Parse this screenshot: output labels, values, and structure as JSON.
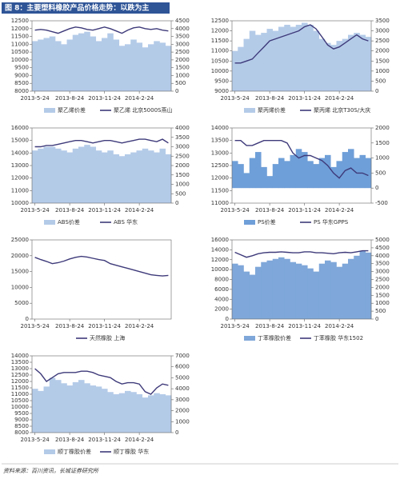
{
  "header": {
    "title": "图 8：主要塑料橡胶产品价格走势：以跌为主"
  },
  "footer": {
    "source": "资料来源：百川资讯，长城证券研究所"
  },
  "chart_data": [
    {
      "type": "combo",
      "categories": [
        "2013-5-24",
        null,
        null,
        null,
        null,
        null,
        "2013-8-24",
        null,
        null,
        null,
        null,
        null,
        "2013-11-24",
        null,
        null,
        null,
        null,
        null,
        "2014-2-24",
        null,
        null,
        null,
        null,
        null
      ],
      "ylim": [
        8000,
        12500
      ],
      "yticks": [
        8000,
        8500,
        9000,
        9500,
        10000,
        10500,
        11000,
        11500,
        12000,
        12500
      ],
      "y2lim": [
        0,
        4500
      ],
      "y2ticks": [
        0,
        500,
        1000,
        1500,
        2000,
        2500,
        3000,
        3500,
        4000,
        4500
      ],
      "series": [
        {
          "name": "聚乙烯价差",
          "color": "#b4cbe8",
          "axis": "y2",
          "values": [
            3200,
            3300,
            3400,
            3500,
            3200,
            3000,
            3300,
            3600,
            3700,
            3800,
            3500,
            3200,
            3400,
            3700,
            3300,
            2900,
            3000,
            3300,
            3100,
            2800,
            3000,
            3200,
            3100,
            2900
          ]
        },
        {
          "name": "聚乙烯 北京5000S燕山",
          "color": "#3e3a7a",
          "values": [
            11900,
            11950,
            11900,
            11800,
            11700,
            11850,
            12000,
            12100,
            12050,
            11950,
            11900,
            12000,
            12100,
            12000,
            11850,
            11700,
            11900,
            12050,
            12100,
            12000,
            11950,
            12000,
            11900,
            11850
          ]
        }
      ]
    },
    {
      "type": "combo",
      "categories": [
        "2013-5-24",
        null,
        null,
        null,
        null,
        null,
        "2013-8-24",
        null,
        null,
        null,
        null,
        null,
        "2013-11-24",
        null,
        null,
        null,
        null,
        null,
        "2014-2-24",
        null,
        null,
        null,
        null,
        null
      ],
      "ylim": [
        9000,
        12500
      ],
      "yticks": [
        9000,
        9500,
        10000,
        10500,
        11000,
        11500,
        12000,
        12500
      ],
      "y2lim": [
        0,
        3500
      ],
      "y2ticks": [
        0,
        500,
        1000,
        1500,
        2000,
        2500,
        3000,
        3500
      ],
      "series": [
        {
          "name": "聚丙烯价差",
          "color": "#b4cbe8",
          "axis": "y2",
          "values": [
            2000,
            2200,
            2600,
            3000,
            2800,
            2900,
            3100,
            3000,
            3200,
            3300,
            3200,
            3300,
            3400,
            3300,
            3000,
            2600,
            2400,
            2300,
            2500,
            2600,
            2800,
            2900,
            2800,
            2700
          ]
        },
        {
          "name": "聚丙烯 北京T30S/大庆",
          "color": "#3e3a7a",
          "values": [
            10400,
            10400,
            10500,
            10600,
            10900,
            11200,
            11500,
            11600,
            11700,
            11800,
            11900,
            12000,
            12200,
            12300,
            12100,
            11700,
            11300,
            11100,
            11200,
            11400,
            11600,
            11800,
            11600,
            11500
          ]
        }
      ]
    },
    {
      "type": "combo",
      "categories": [
        "2013-5-24",
        null,
        null,
        null,
        null,
        null,
        "2013-8-24",
        null,
        null,
        null,
        null,
        null,
        "2013-11-24",
        null,
        null,
        null,
        null,
        null,
        "2014-2-24",
        null,
        null,
        null,
        null,
        null
      ],
      "ylim": [
        10000,
        16000
      ],
      "yticks": [
        10000,
        11000,
        12000,
        13000,
        14000,
        15000,
        16000
      ],
      "y2lim": [
        0,
        4000
      ],
      "y2ticks": [
        0,
        500,
        1000,
        1500,
        2000,
        2500,
        3000,
        3500,
        4000
      ],
      "series": [
        {
          "name": "ABS价差",
          "color": "#b4cbe8",
          "axis": "y2",
          "values": [
            2800,
            2900,
            3000,
            3000,
            2900,
            2800,
            2700,
            2900,
            3000,
            3100,
            3000,
            2800,
            2700,
            2800,
            2600,
            2500,
            2600,
            2700,
            2800,
            2900,
            2800,
            2700,
            2900,
            2600
          ]
        },
        {
          "name": "ABS 华东",
          "color": "#3e3a7a",
          "values": [
            14500,
            14500,
            14600,
            14600,
            14700,
            14800,
            14900,
            15000,
            15000,
            14900,
            14800,
            14900,
            15000,
            15000,
            14900,
            14800,
            14900,
            15000,
            15100,
            15100,
            15000,
            14900,
            15100,
            14800
          ]
        }
      ]
    },
    {
      "type": "combo",
      "categories": [
        "2013-5-24",
        null,
        null,
        null,
        null,
        null,
        "2013-8-24",
        null,
        null,
        null,
        null,
        null,
        "2013-11-24",
        null,
        null,
        null,
        null,
        null,
        "2014-2-24",
        null,
        null,
        null,
        null,
        null
      ],
      "ylim": [
        11000,
        14000
      ],
      "yticks": [
        11000,
        11500,
        12000,
        12500,
        13000,
        13500,
        14000
      ],
      "y2lim": [
        -500,
        2000
      ],
      "y2ticks": [
        -500,
        0,
        500,
        1000,
        1500,
        2000
      ],
      "series": [
        {
          "name": "PS价差",
          "color": "#6f9fd8",
          "axis": "y2",
          "values": [
            900,
            800,
            500,
            1000,
            1200,
            700,
            400,
            800,
            1000,
            900,
            1100,
            1300,
            1200,
            900,
            800,
            1000,
            1100,
            700,
            900,
            1200,
            1300,
            1000,
            1100,
            1000
          ]
        },
        {
          "name": "PS 华东GPPS",
          "color": "#3e3a7a",
          "values": [
            13500,
            13500,
            13300,
            13300,
            13400,
            13500,
            13500,
            13500,
            13500,
            13400,
            13000,
            12800,
            12900,
            12900,
            12800,
            12700,
            12500,
            12200,
            12000,
            12300,
            12400,
            12200,
            12200,
            12100
          ]
        }
      ]
    },
    {
      "type": "line",
      "categories": [
        "2013-5-24",
        null,
        null,
        null,
        null,
        null,
        "2013-8-24",
        null,
        null,
        null,
        null,
        null,
        "2013-11-24",
        null,
        null,
        null,
        null,
        null,
        "2014-2-24",
        null,
        null,
        null,
        null,
        null
      ],
      "ylim": [
        0,
        25000
      ],
      "yticks": [
        0,
        5000,
        10000,
        15000,
        20000,
        25000
      ],
      "series": [
        {
          "name": "天然橡胶 上海",
          "color": "#3e3a7a",
          "values": [
            19500,
            18800,
            18200,
            17500,
            17800,
            18300,
            19000,
            19500,
            19800,
            19600,
            19200,
            18800,
            18500,
            17500,
            17000,
            16500,
            16000,
            15500,
            15000,
            14500,
            14000,
            13800,
            13600,
            13800
          ]
        }
      ]
    },
    {
      "type": "combo",
      "categories": [
        "2013-5-24",
        null,
        null,
        null,
        null,
        null,
        "2013-8-24",
        null,
        null,
        null,
        null,
        null,
        "2013-11-24",
        null,
        null,
        null,
        null,
        null,
        "2014-2-24",
        null,
        null,
        null,
        null,
        null
      ],
      "ylim": [
        0,
        16000
      ],
      "yticks": [
        0,
        2000,
        4000,
        6000,
        8000,
        10000,
        12000,
        14000,
        16000
      ],
      "y2lim": [
        0,
        5000
      ],
      "y2ticks": [
        0,
        500,
        1000,
        1500,
        2000,
        2500,
        3000,
        3500,
        4000,
        4500,
        5000
      ],
      "series": [
        {
          "name": "丁苯橡胶价差",
          "color": "#7fa7d9",
          "axis": "y2",
          "values": [
            3500,
            3400,
            3000,
            2800,
            3300,
            3600,
            3700,
            3800,
            3900,
            3800,
            3600,
            3500,
            3400,
            3200,
            3000,
            3500,
            3700,
            3600,
            3300,
            3500,
            3800,
            4000,
            4300,
            4200
          ]
        },
        {
          "name": "丁苯橡胶 华东1502",
          "color": "#3e3a7a",
          "values": [
            13500,
            13000,
            12500,
            12800,
            13200,
            13400,
            13500,
            13500,
            13600,
            13500,
            13400,
            13400,
            13600,
            13600,
            13400,
            13400,
            13300,
            13200,
            13400,
            13500,
            13400,
            13600,
            13800,
            13800
          ]
        }
      ]
    },
    {
      "type": "combo",
      "categories": [
        "2013-5-24",
        null,
        null,
        null,
        null,
        null,
        "2013-8-24",
        null,
        null,
        null,
        null,
        null,
        "2013-11-24",
        null,
        null,
        null,
        null,
        null,
        "2014-2-24",
        null,
        null,
        null,
        null,
        null
      ],
      "ylim": [
        8000,
        14000
      ],
      "yticks": [
        8000,
        8500,
        9000,
        9500,
        10000,
        10500,
        11000,
        11500,
        12000,
        12500,
        13000,
        13500,
        14000
      ],
      "y2lim": [
        0,
        7000
      ],
      "y2ticks": [
        0,
        1000,
        2000,
        3000,
        4000,
        5000,
        6000,
        7000
      ],
      "series": [
        {
          "name": "顺丁橡胶价差",
          "color": "#b4cbe8",
          "axis": "y2",
          "values": [
            4000,
            3800,
            4200,
            5000,
            4800,
            4500,
            4300,
            4600,
            4800,
            4500,
            4300,
            4200,
            4000,
            3700,
            3500,
            3600,
            3800,
            3700,
            3500,
            3200,
            3400,
            3600,
            3500,
            3400
          ]
        },
        {
          "name": "顺丁橡胶 华东",
          "color": "#3e3a7a",
          "values": [
            13000,
            12600,
            12000,
            12300,
            12600,
            12700,
            12700,
            12700,
            12800,
            12800,
            12700,
            12500,
            12400,
            12300,
            12000,
            11800,
            11900,
            11900,
            11800,
            11200,
            11000,
            11500,
            11800,
            11700
          ]
        }
      ]
    }
  ]
}
